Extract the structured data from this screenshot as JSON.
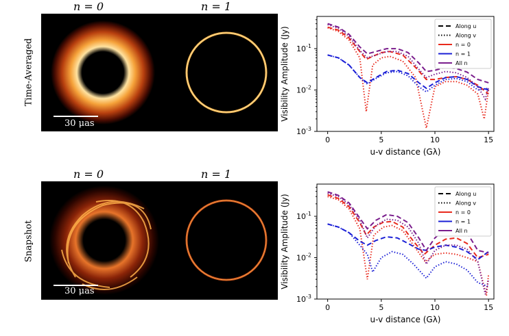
{
  "rows": [
    {
      "label": "Time-Averaged",
      "panel_titles": [
        "n = 0",
        "n = 1"
      ],
      "scale_bar": "30 μas"
    },
    {
      "label": "Snapshot",
      "panel_titles": [
        "n = 0",
        "n = 1"
      ],
      "scale_bar": "30 μas"
    }
  ],
  "colors": {
    "n0": "#e8291c",
    "n1": "#1a1fd6",
    "all": "#7a1d8c",
    "ring_hot": "#ffd27a",
    "ring_mid": "#e0661c"
  },
  "chart_data": [
    {
      "type": "line",
      "xlabel": "u-v distance (Gλ)",
      "ylabel": "Visibility Amplitude (Jy)",
      "yscale": "log",
      "xlim": [
        -1,
        15.5
      ],
      "ylim": [
        0.001,
        0.6
      ],
      "xticks": [
        "0",
        "5",
        "10",
        "15"
      ],
      "yticks": [
        "10^-3",
        "10^-2",
        "10^-1"
      ],
      "legend": [
        "Along u",
        "Along v",
        "n = 0",
        "n = 1",
        "All n"
      ],
      "legend_position": "top-right",
      "series": [
        {
          "name": "n = 0",
          "style": "Along u",
          "x": [
            0,
            1,
            2,
            3,
            3.6,
            4.2,
            5,
            5.8,
            7,
            8.2,
            9.2,
            10,
            11,
            12,
            13,
            14,
            15
          ],
          "y": [
            0.33,
            0.28,
            0.18,
            0.085,
            0.055,
            0.065,
            0.08,
            0.085,
            0.07,
            0.035,
            0.018,
            0.018,
            0.02,
            0.021,
            0.018,
            0.013,
            0.008
          ]
        },
        {
          "name": "n = 0",
          "style": "Along v",
          "x": [
            0,
            1,
            2,
            3,
            3.6,
            4.2,
            5,
            5.8,
            7,
            8.2,
            9.2,
            10,
            11,
            12,
            13,
            14,
            14.6,
            15
          ],
          "y": [
            0.32,
            0.26,
            0.16,
            0.06,
            0.003,
            0.04,
            0.06,
            0.065,
            0.05,
            0.02,
            0.0012,
            0.012,
            0.016,
            0.016,
            0.013,
            0.008,
            0.002,
            0.01
          ]
        },
        {
          "name": "n = 1",
          "style": "Along u",
          "x": [
            0,
            1,
            2,
            3,
            3.7,
            4.5,
            5.5,
            6.5,
            7.5,
            8.5,
            9.2,
            10,
            11,
            12,
            13,
            14,
            15
          ],
          "y": [
            0.07,
            0.06,
            0.04,
            0.02,
            0.015,
            0.02,
            0.028,
            0.03,
            0.025,
            0.015,
            0.011,
            0.015,
            0.02,
            0.021,
            0.018,
            0.012,
            0.01
          ]
        },
        {
          "name": "n = 1",
          "style": "Along v",
          "x": [
            0,
            1,
            2,
            3,
            3.7,
            4.5,
            5.5,
            6.5,
            7.5,
            8.5,
            9.2,
            10,
            11,
            12,
            13,
            14,
            15
          ],
          "y": [
            0.07,
            0.06,
            0.04,
            0.02,
            0.014,
            0.019,
            0.026,
            0.028,
            0.022,
            0.012,
            0.009,
            0.013,
            0.018,
            0.019,
            0.016,
            0.01,
            0.011
          ]
        },
        {
          "name": "All n",
          "style": "Along u",
          "x": [
            0,
            1,
            2,
            3,
            3.7,
            4.5,
            5.5,
            6.5,
            7.5,
            8.5,
            9.2,
            10,
            11,
            12,
            13,
            14,
            15
          ],
          "y": [
            0.4,
            0.33,
            0.22,
            0.11,
            0.075,
            0.085,
            0.1,
            0.1,
            0.08,
            0.045,
            0.028,
            0.03,
            0.035,
            0.033,
            0.027,
            0.018,
            0.015
          ]
        },
        {
          "name": "All n",
          "style": "Along v",
          "x": [
            0,
            1,
            2,
            3,
            3.7,
            4.5,
            5.5,
            6.5,
            7.5,
            8.5,
            9.2,
            10,
            11,
            12,
            13,
            14,
            14.7,
            15
          ],
          "y": [
            0.38,
            0.31,
            0.2,
            0.09,
            0.06,
            0.07,
            0.085,
            0.085,
            0.065,
            0.032,
            0.02,
            0.024,
            0.028,
            0.026,
            0.02,
            0.012,
            0.006,
            0.012
          ]
        }
      ]
    },
    {
      "type": "line",
      "xlabel": "u-v distance (Gλ)",
      "ylabel": "Visibility Amplitude (Jy)",
      "yscale": "log",
      "xlim": [
        -1,
        15.5
      ],
      "ylim": [
        0.001,
        0.6
      ],
      "xticks": [
        "0",
        "5",
        "10",
        "15"
      ],
      "yticks": [
        "10^-3",
        "10^-2",
        "10^-1"
      ],
      "legend": [
        "Along u",
        "Along v",
        "n = 0",
        "n = 1",
        "All n"
      ],
      "legend_position": "top-right",
      "series": [
        {
          "name": "n = 0",
          "style": "Along u",
          "x": [
            0,
            1,
            2,
            3,
            3.6,
            4.3,
            5.2,
            6,
            7,
            8,
            9,
            10,
            11,
            12,
            13,
            14,
            15
          ],
          "y": [
            0.33,
            0.27,
            0.17,
            0.07,
            0.035,
            0.055,
            0.072,
            0.075,
            0.055,
            0.025,
            0.012,
            0.02,
            0.028,
            0.03,
            0.022,
            0.01,
            0.012
          ]
        },
        {
          "name": "n = 0",
          "style": "Along v",
          "x": [
            0,
            1,
            2,
            3,
            3.7,
            4.3,
            5.2,
            6,
            7,
            8,
            9.1,
            10,
            11,
            12,
            13,
            14,
            14.8,
            15
          ],
          "y": [
            0.3,
            0.25,
            0.15,
            0.05,
            0.003,
            0.035,
            0.055,
            0.06,
            0.045,
            0.02,
            0.008,
            0.012,
            0.013,
            0.012,
            0.01,
            0.008,
            0.0012,
            0.004
          ]
        },
        {
          "name": "n = 1",
          "style": "Along u",
          "x": [
            0,
            1,
            2,
            3,
            3.7,
            4.5,
            5.5,
            6.5,
            7.5,
            8.5,
            9.2,
            10,
            11,
            12,
            13,
            14,
            15
          ],
          "y": [
            0.065,
            0.055,
            0.04,
            0.025,
            0.02,
            0.026,
            0.032,
            0.03,
            0.022,
            0.016,
            0.015,
            0.018,
            0.02,
            0.018,
            0.014,
            0.009,
            0.014
          ]
        },
        {
          "name": "n = 1",
          "style": "Along v",
          "x": [
            0,
            1,
            2,
            3,
            3.7,
            4.2,
            5,
            6,
            7,
            8,
            9.2,
            10,
            11,
            12,
            13,
            14,
            15
          ],
          "y": [
            0.065,
            0.055,
            0.04,
            0.02,
            0.012,
            0.0045,
            0.01,
            0.014,
            0.012,
            0.007,
            0.0032,
            0.006,
            0.008,
            0.007,
            0.005,
            0.0025,
            0.002
          ]
        },
        {
          "name": "All n",
          "style": "Along u",
          "x": [
            0,
            1,
            2,
            3,
            3.7,
            4.5,
            5.5,
            6.5,
            7.5,
            8.5,
            9.2,
            10,
            11,
            12,
            13,
            14,
            15
          ],
          "y": [
            0.39,
            0.32,
            0.21,
            0.09,
            0.05,
            0.08,
            0.11,
            0.1,
            0.07,
            0.03,
            0.015,
            0.03,
            0.05,
            0.055,
            0.04,
            0.015,
            0.013
          ]
        },
        {
          "name": "All n",
          "style": "Along v",
          "x": [
            0,
            1,
            2,
            3,
            3.7,
            4.5,
            5.5,
            6.5,
            7.5,
            8.5,
            9.2,
            10,
            11,
            12,
            13,
            14,
            14.7,
            15
          ],
          "y": [
            0.36,
            0.3,
            0.19,
            0.08,
            0.03,
            0.06,
            0.085,
            0.08,
            0.055,
            0.022,
            0.007,
            0.015,
            0.02,
            0.02,
            0.016,
            0.008,
            0.0013,
            0.003
          ]
        }
      ]
    }
  ]
}
